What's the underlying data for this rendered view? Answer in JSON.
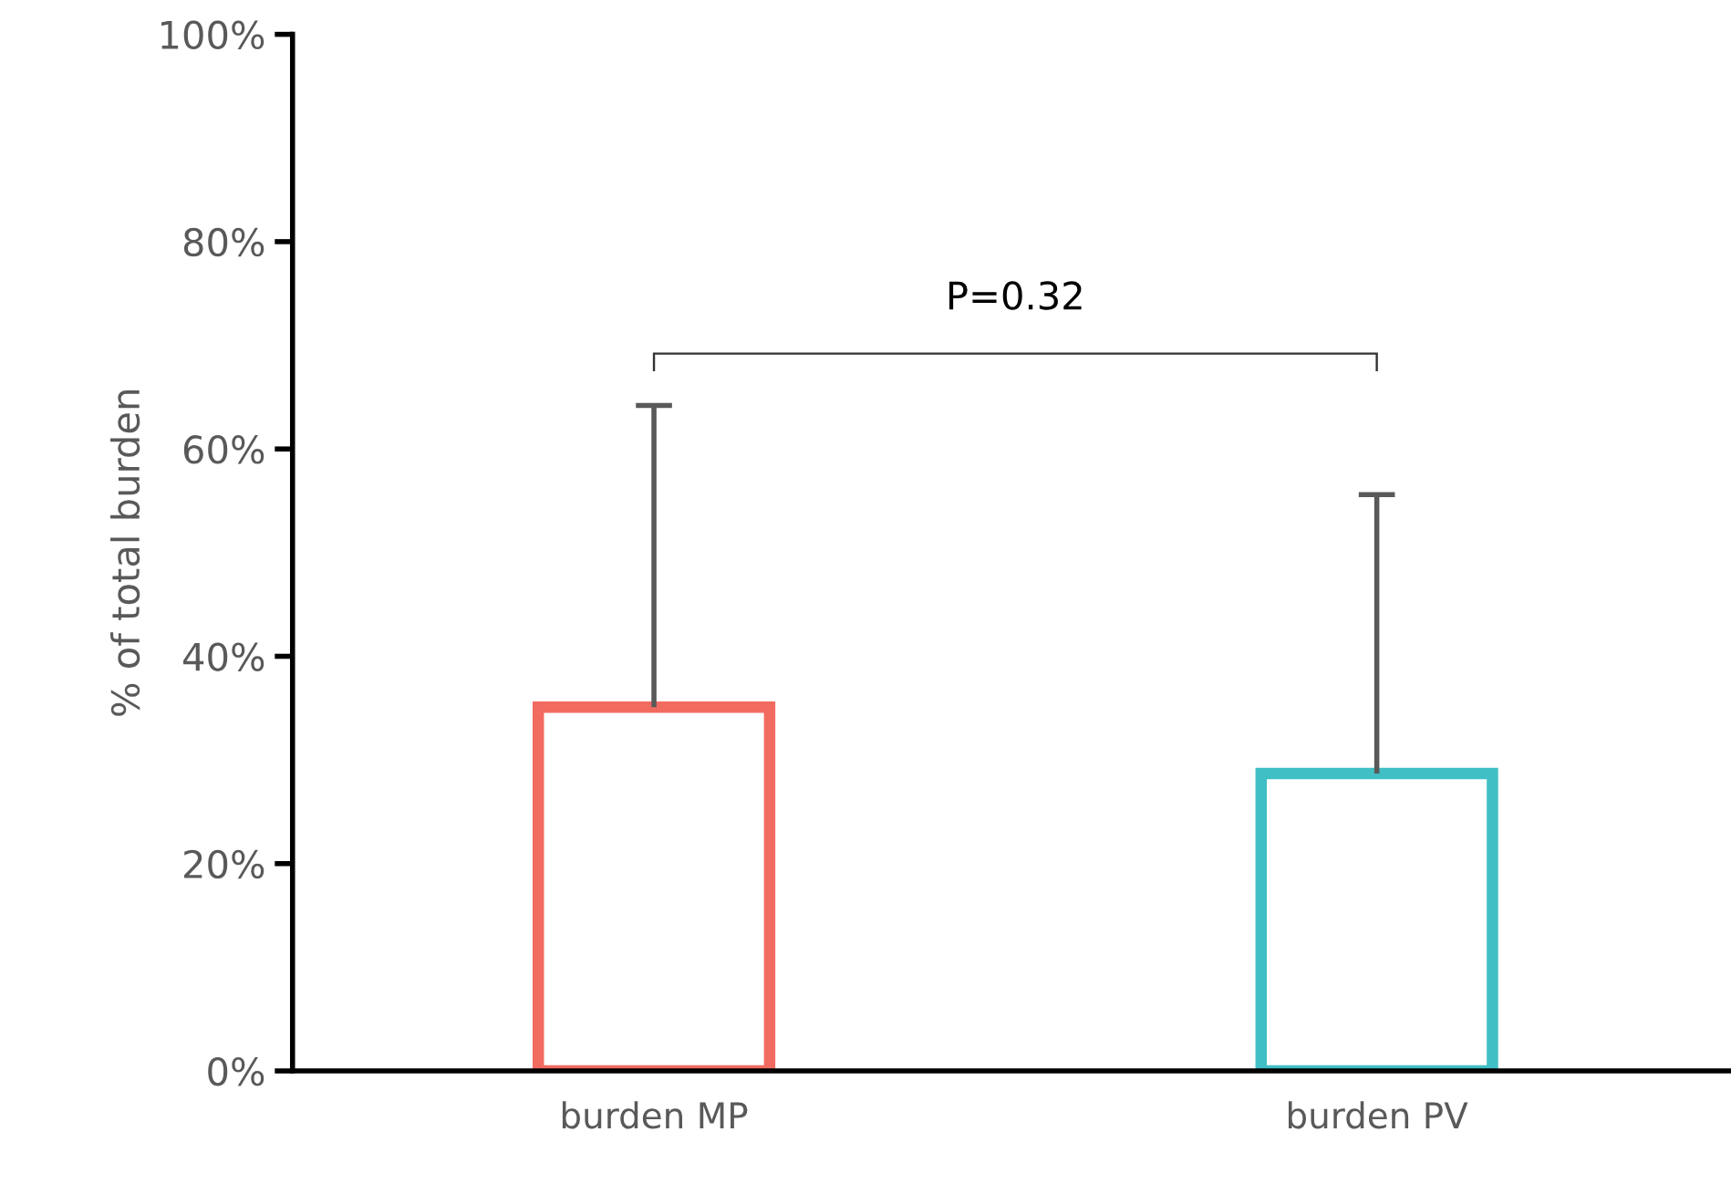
{
  "chart_data": {
    "type": "bar",
    "ylabel": "% of total burden",
    "categories": [
      "burden MP",
      "burden PV"
    ],
    "values": [
      35.1,
      28.7
    ],
    "colors": [
      "#f26b60",
      "#40bfc4"
    ],
    "errors": [
      [
        35.1,
        64.2
      ],
      [
        28.7,
        55.6
      ]
    ],
    "ylim": [
      0,
      100
    ],
    "yticks": [
      {
        "value": 0,
        "label": "0%"
      },
      {
        "value": 20,
        "label": "20%"
      },
      {
        "value": 40,
        "label": "40%"
      },
      {
        "value": 60,
        "label": "60%"
      },
      {
        "value": 80,
        "label": "80%"
      },
      {
        "value": 100,
        "label": "100%"
      }
    ],
    "grid": false,
    "legend": false,
    "annotations": [
      "P=0.32"
    ]
  }
}
